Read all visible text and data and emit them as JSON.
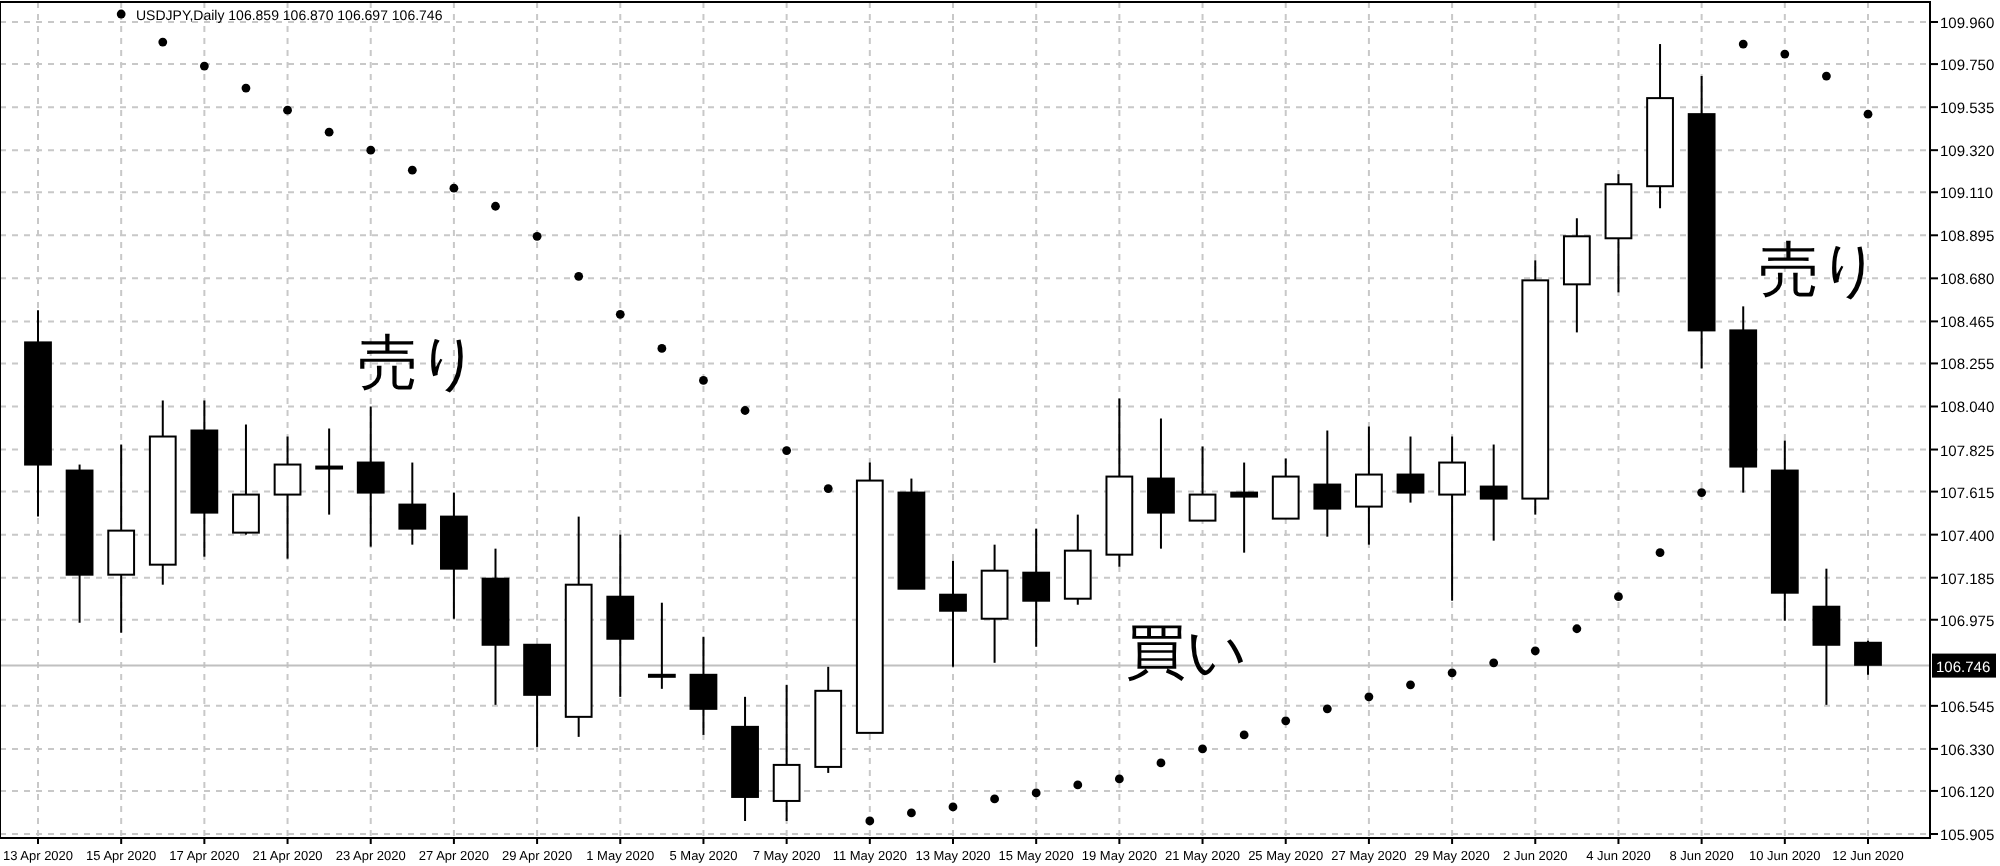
{
  "chart_data": {
    "type": "candlestick",
    "title": "USDJPY,Daily 106.859 106.870 106.697 106.746",
    "categories": [
      "13 Apr 2020",
      null,
      "15 Apr 2020",
      null,
      "17 Apr 2020",
      null,
      "21 Apr 2020",
      null,
      "23 Apr 2020",
      null,
      "27 Apr 2020",
      null,
      "29 Apr 2020",
      null,
      "1 May 2020",
      null,
      "5 May 2020",
      null,
      "7 May 2020",
      null,
      "11 May 2020",
      null,
      "13 May 2020",
      null,
      "15 May 2020",
      null,
      "19 May 2020",
      null,
      "21 May 2020",
      null,
      "25 May 2020",
      null,
      "27 May 2020",
      null,
      "29 May 2020",
      null,
      "2 Jun 2020",
      null,
      "4 Jun 2020",
      null,
      "8 Jun 2020",
      null,
      "10 Jun 2020",
      null,
      "12 Jun 2020"
    ],
    "ohlc": [
      [
        108.36,
        108.52,
        107.49,
        107.75
      ],
      [
        107.72,
        107.75,
        106.96,
        107.2
      ],
      [
        107.2,
        107.85,
        106.91,
        107.42
      ],
      [
        107.25,
        108.07,
        107.15,
        107.89
      ],
      [
        107.92,
        108.07,
        107.29,
        107.51
      ],
      [
        107.41,
        107.95,
        107.4,
        107.6
      ],
      [
        107.6,
        107.89,
        107.28,
        107.75
      ],
      [
        107.74,
        107.93,
        107.5,
        107.74
      ],
      [
        107.76,
        108.04,
        107.34,
        107.61
      ],
      [
        107.55,
        107.76,
        107.35,
        107.43
      ],
      [
        107.49,
        107.61,
        106.98,
        107.23
      ],
      [
        107.18,
        107.33,
        106.55,
        106.85
      ],
      [
        106.85,
        106.85,
        106.34,
        106.6
      ],
      [
        106.49,
        107.49,
        106.39,
        107.15
      ],
      [
        107.09,
        107.4,
        106.59,
        106.88
      ],
      [
        106.7,
        107.06,
        106.63,
        106.7
      ],
      [
        106.7,
        106.89,
        106.4,
        106.53
      ],
      [
        106.44,
        106.59,
        105.97,
        106.09
      ],
      [
        106.07,
        106.65,
        105.97,
        106.25
      ],
      [
        106.24,
        106.74,
        106.21,
        106.62
      ],
      [
        106.41,
        107.76,
        106.41,
        107.67
      ],
      [
        107.61,
        107.68,
        107.13,
        107.13
      ],
      [
        107.1,
        107.27,
        106.74,
        107.02
      ],
      [
        106.98,
        107.35,
        106.76,
        107.22
      ],
      [
        107.21,
        107.43,
        106.84,
        107.07
      ],
      [
        107.08,
        107.5,
        107.05,
        107.32
      ],
      [
        107.3,
        108.08,
        107.24,
        107.69
      ],
      [
        107.68,
        107.98,
        107.33,
        107.51
      ],
      [
        107.47,
        107.84,
        107.47,
        107.6
      ],
      [
        107.61,
        107.76,
        107.31,
        107.59
      ],
      [
        107.48,
        107.78,
        107.48,
        107.69
      ],
      [
        107.65,
        107.92,
        107.39,
        107.53
      ],
      [
        107.54,
        107.94,
        107.35,
        107.7
      ],
      [
        107.7,
        107.89,
        107.56,
        107.61
      ],
      [
        107.6,
        107.89,
        107.07,
        107.76
      ],
      [
        107.64,
        107.85,
        107.37,
        107.58
      ],
      [
        107.58,
        108.77,
        107.5,
        108.67
      ],
      [
        108.65,
        108.98,
        108.41,
        108.89
      ],
      [
        108.88,
        109.2,
        108.61,
        109.15
      ],
      [
        109.14,
        109.85,
        109.03,
        109.58
      ],
      [
        109.5,
        109.69,
        108.23,
        108.42
      ],
      [
        108.42,
        108.54,
        107.61,
        107.74
      ],
      [
        107.72,
        107.87,
        106.97,
        107.11
      ],
      [
        107.04,
        107.23,
        106.55,
        106.85
      ],
      [
        106.86,
        106.87,
        106.7,
        106.75
      ]
    ],
    "color": "#000000",
    "series": [
      {
        "type": "scatter",
        "color": "#000000",
        "marker": "circle",
        "values": [
          null,
          null,
          110.0,
          109.86,
          109.74,
          109.63,
          109.52,
          109.41,
          109.32,
          109.22,
          109.13,
          109.04,
          108.89,
          108.69,
          108.5,
          108.33,
          108.17,
          108.02,
          107.82,
          107.63,
          105.97,
          106.01,
          106.04,
          106.08,
          106.11,
          106.15,
          106.18,
          106.26,
          106.33,
          106.4,
          106.47,
          106.53,
          106.59,
          106.65,
          106.71,
          106.76,
          106.82,
          106.93,
          107.09,
          107.31,
          107.61,
          109.85,
          109.8,
          109.69,
          109.5
        ]
      }
    ],
    "ylim": [
      105.885,
      110.06
    ],
    "yticks": [
      {
        "value": 109.96,
        "label": "109.960"
      },
      {
        "value": 109.75,
        "label": "109.750"
      },
      {
        "value": 109.535,
        "label": "109.535"
      },
      {
        "value": 109.32,
        "label": "109.320"
      },
      {
        "value": 109.11,
        "label": "109.110"
      },
      {
        "value": 108.895,
        "label": "108.895"
      },
      {
        "value": 108.68,
        "label": "108.680"
      },
      {
        "value": 108.465,
        "label": "108.465"
      },
      {
        "value": 108.255,
        "label": "108.255"
      },
      {
        "value": 108.04,
        "label": "108.040"
      },
      {
        "value": 107.825,
        "label": "107.825"
      },
      {
        "value": 107.615,
        "label": "107.615"
      },
      {
        "value": 107.4,
        "label": "107.400"
      },
      {
        "value": 107.185,
        "label": "107.185"
      },
      {
        "value": 106.975,
        "label": "106.975"
      },
      {
        "value": 106.545,
        "label": "106.545"
      },
      {
        "value": 106.33,
        "label": "106.330"
      },
      {
        "value": 106.12,
        "label": "106.120"
      },
      {
        "value": 105.905,
        "label": "105.905"
      }
    ],
    "ref_lines": [
      {
        "axis": "y",
        "value": 106.746,
        "label": "106.746",
        "color": "#c0c0c0"
      }
    ],
    "annotations": [
      "売り",
      "買い",
      "売り"
    ],
    "grid": true
  }
}
